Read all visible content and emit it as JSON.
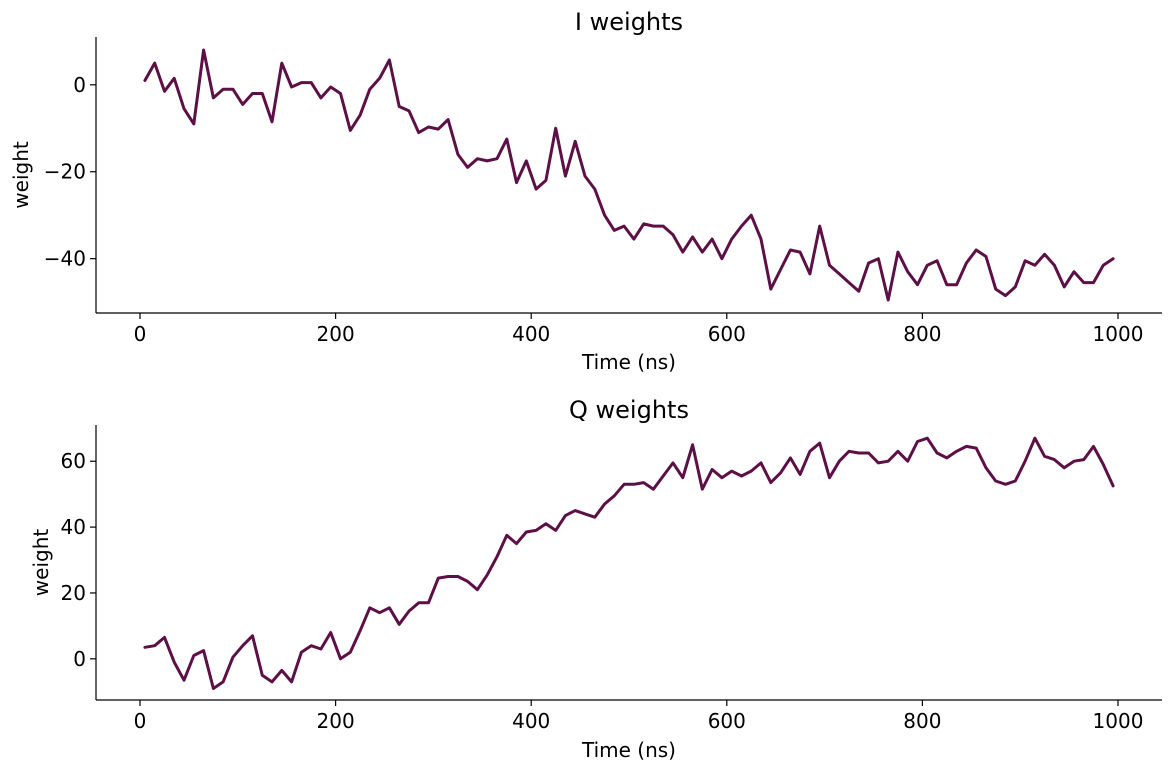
{
  "chart_data": [
    {
      "type": "line",
      "title": "I weights",
      "xlabel": "Time (ns)",
      "ylabel": "weight",
      "xlim": [
        -45,
        1045
      ],
      "ylim": [
        -52.5,
        11
      ],
      "xticks": [
        0,
        200,
        400,
        600,
        800,
        1000
      ],
      "xtick_labels": [
        "0",
        "200",
        "400",
        "600",
        "800",
        "1000"
      ],
      "yticks": [
        0,
        -20,
        -40
      ],
      "ytick_labels": [
        "0",
        "−20",
        "−40"
      ],
      "grid": false,
      "line_color": "#5c1045",
      "series": [
        {
          "x": [
            5,
            15,
            25,
            35,
            45,
            55,
            65,
            75,
            85,
            95,
            105,
            115,
            125,
            135,
            145,
            155,
            165,
            175,
            185,
            195,
            205,
            215,
            225,
            235,
            245,
            255,
            265,
            275,
            285,
            295,
            305,
            315,
            325,
            335,
            345,
            355,
            365,
            375,
            385,
            395,
            405,
            415,
            425,
            435,
            445,
            455,
            465,
            475,
            485,
            495,
            505,
            515,
            525,
            535,
            545,
            555,
            565,
            575,
            585,
            595,
            605,
            615,
            625,
            635,
            645,
            655,
            665,
            675,
            685,
            695,
            705,
            715,
            725,
            735,
            745,
            755,
            765,
            775,
            785,
            795,
            805,
            815,
            825,
            835,
            845,
            855,
            865,
            875,
            885,
            895,
            905,
            915,
            925,
            935,
            945,
            955,
            965,
            975,
            985,
            995
          ],
          "y": [
            1.0,
            5.0,
            -1.5,
            1.5,
            -5.5,
            -9.0,
            8.0,
            -3.0,
            -1.0,
            -1.0,
            -4.5,
            -2.0,
            -2.0,
            -8.5,
            5.0,
            -0.5,
            0.5,
            0.5,
            -3.0,
            -0.5,
            -2.0,
            -10.5,
            -7.0,
            -1.0,
            1.5,
            5.7,
            -5.0,
            -6.0,
            -11.0,
            -9.7,
            -10.2,
            -8.0,
            -16.0,
            -19.0,
            -17.0,
            -17.5,
            -17.0,
            -12.5,
            -22.5,
            -17.5,
            -24.0,
            -22.0,
            -10.0,
            -21.0,
            -13.0,
            -21.0,
            -24.0,
            -30.0,
            -33.5,
            -32.5,
            -35.5,
            -32.0,
            -32.5,
            -32.5,
            -34.5,
            -38.5,
            -35.0,
            -38.5,
            -35.5,
            -40.0,
            -35.5,
            -32.5,
            -30.0,
            -35.5,
            -47.0,
            -42.5,
            -38.0,
            -38.5,
            -43.5,
            -32.5,
            -41.5,
            -43.5,
            -45.5,
            -47.5,
            -41.0,
            -40.0,
            -49.5,
            -38.5,
            -43.0,
            -46.0,
            -41.5,
            -40.5,
            -46.0,
            -46.0,
            -41.0,
            -38.0,
            -39.5,
            -47.0,
            -48.5,
            -46.5,
            -40.5,
            -41.5,
            -39.0,
            -41.5,
            -46.5,
            -43.0,
            -45.5,
            -45.5,
            -41.5,
            -40.0
          ]
        }
      ]
    },
    {
      "type": "line",
      "title": "Q weights",
      "xlabel": "Time (ns)",
      "ylabel": "weight",
      "xlim": [
        -45,
        1045
      ],
      "ylim": [
        -12.5,
        71
      ],
      "xticks": [
        0,
        200,
        400,
        600,
        800,
        1000
      ],
      "xtick_labels": [
        "0",
        "200",
        "400",
        "600",
        "800",
        "1000"
      ],
      "yticks": [
        0,
        20,
        40,
        60
      ],
      "ytick_labels": [
        "0",
        "20",
        "40",
        "60"
      ],
      "grid": false,
      "line_color": "#5c1045",
      "series": [
        {
          "x": [
            5,
            15,
            25,
            35,
            45,
            55,
            65,
            75,
            85,
            95,
            105,
            115,
            125,
            135,
            145,
            155,
            165,
            175,
            185,
            195,
            205,
            215,
            225,
            235,
            245,
            255,
            265,
            275,
            285,
            295,
            305,
            315,
            325,
            335,
            345,
            355,
            365,
            375,
            385,
            395,
            405,
            415,
            425,
            435,
            445,
            455,
            465,
            475,
            485,
            495,
            505,
            515,
            525,
            535,
            545,
            555,
            565,
            575,
            585,
            595,
            605,
            615,
            625,
            635,
            645,
            655,
            665,
            675,
            685,
            695,
            705,
            715,
            725,
            735,
            745,
            755,
            765,
            775,
            785,
            795,
            805,
            815,
            825,
            835,
            845,
            855,
            865,
            875,
            885,
            895,
            905,
            915,
            925,
            935,
            945,
            955,
            965,
            975,
            985,
            995
          ],
          "y": [
            3.5,
            4.0,
            6.5,
            -1.0,
            -6.5,
            1.0,
            2.5,
            -9.0,
            -7.0,
            0.5,
            4.0,
            7.0,
            -5.0,
            -7.0,
            -3.5,
            -7.0,
            2.0,
            4.0,
            3.0,
            8.0,
            0.0,
            2.0,
            8.5,
            15.5,
            14.0,
            15.5,
            10.5,
            14.5,
            17.0,
            17.0,
            24.5,
            25.0,
            25.0,
            23.5,
            21.0,
            25.5,
            31.0,
            37.5,
            35.0,
            38.5,
            39.0,
            41.0,
            39.0,
            43.5,
            45.0,
            44.0,
            43.0,
            47.0,
            49.5,
            53.0,
            53.0,
            53.5,
            51.5,
            55.5,
            59.5,
            55.0,
            65.0,
            51.5,
            57.5,
            55.0,
            57.0,
            55.5,
            57.0,
            59.5,
            53.5,
            56.5,
            61.0,
            56.0,
            63.0,
            65.5,
            55.0,
            60.0,
            63.0,
            62.5,
            62.5,
            59.5,
            60.0,
            63.0,
            60.0,
            66.0,
            67.0,
            62.5,
            61.0,
            63.0,
            64.5,
            64.0,
            58.0,
            54.0,
            53.0,
            54.0,
            60.0,
            67.0,
            61.5,
            60.5,
            58.0,
            60.0,
            60.5,
            64.5,
            59.0,
            52.5
          ]
        }
      ]
    }
  ]
}
